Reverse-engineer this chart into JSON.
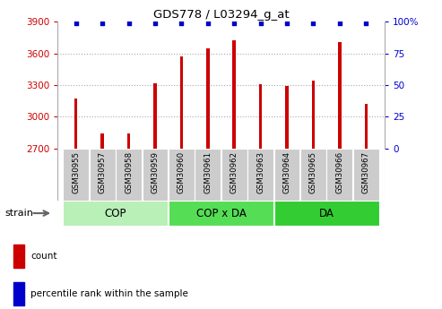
{
  "title": "GDS778 / L03294_g_at",
  "categories": [
    "GSM30955",
    "GSM30957",
    "GSM30958",
    "GSM30959",
    "GSM30960",
    "GSM30961",
    "GSM30962",
    "GSM30963",
    "GSM30964",
    "GSM30965",
    "GSM30966",
    "GSM30967"
  ],
  "counts": [
    3170,
    2840,
    2845,
    3320,
    3570,
    3650,
    3720,
    3310,
    3290,
    3340,
    3710,
    3120
  ],
  "percentile_ranks": [
    99,
    99,
    99,
    99,
    99,
    99,
    99,
    99,
    99,
    99,
    99,
    99
  ],
  "ylim_left": [
    2700,
    3900
  ],
  "ylim_right": [
    0,
    100
  ],
  "yticks_left": [
    2700,
    3000,
    3300,
    3600,
    3900
  ],
  "yticks_right": [
    0,
    25,
    50,
    75,
    100
  ],
  "bar_color": "#cc0000",
  "dot_color": "#0000cc",
  "groups": [
    {
      "label": "COP",
      "start": 0,
      "end": 3,
      "color": "#b8f0b8"
    },
    {
      "label": "COP x DA",
      "start": 4,
      "end": 7,
      "color": "#66dd66"
    },
    {
      "label": "DA",
      "start": 8,
      "end": 11,
      "color": "#44cc44"
    }
  ],
  "strain_label": "strain",
  "legend_count_label": "count",
  "legend_pct_label": "percentile rank within the sample",
  "tick_bg_color": "#cccccc",
  "group_colors": [
    "#b8f0b8",
    "#66dd66",
    "#44cc44"
  ]
}
